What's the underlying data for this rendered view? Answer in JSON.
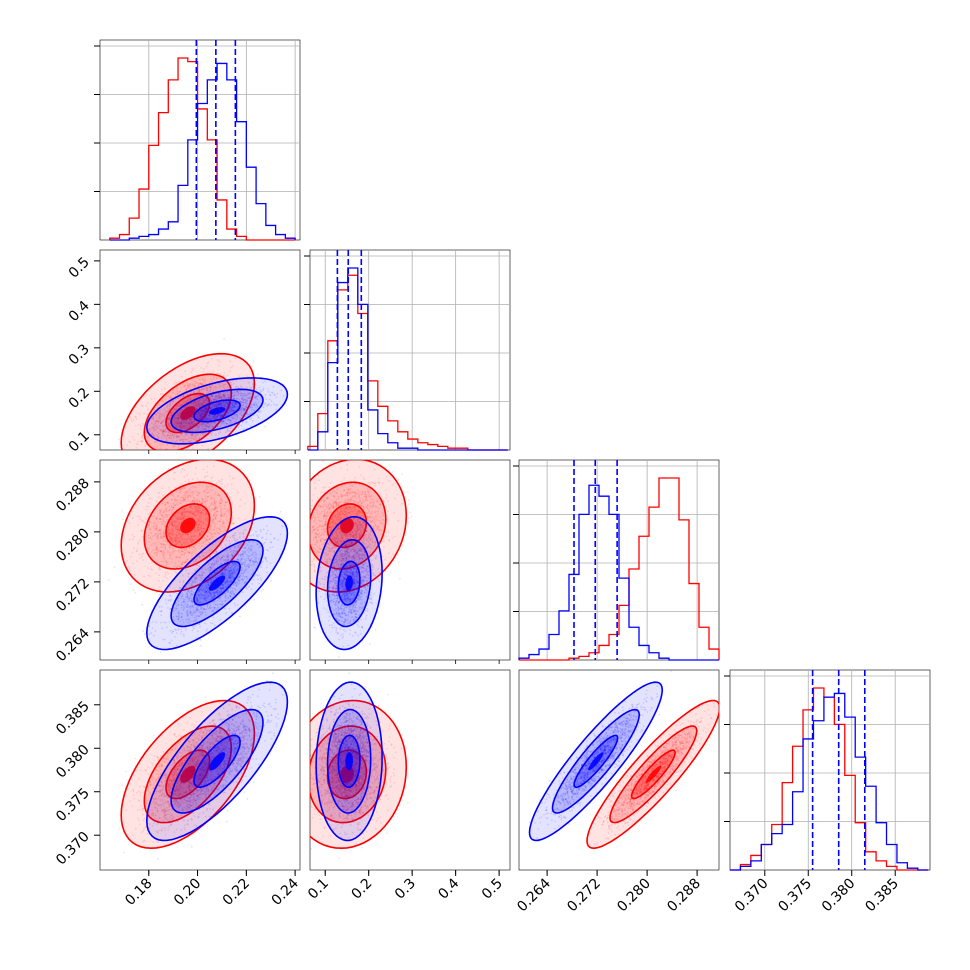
{
  "chart_data": {
    "type": "corner",
    "n_params": 4,
    "series": [
      {
        "color": "#0000ff"
      },
      {
        "color": "#ff0000"
      }
    ],
    "params": [
      {
        "range": [
          0.16,
          0.242
        ],
        "ticks": [
          0.18,
          0.2,
          0.22,
          0.24
        ],
        "tick_labels": [
          "0.18",
          "0.20",
          "0.22",
          "0.24"
        ]
      },
      {
        "range": [
          0.065,
          0.525
        ],
        "ticks": [
          0.1,
          0.2,
          0.3,
          0.4,
          0.5
        ],
        "tick_labels": [
          "0.1",
          "0.2",
          "0.3",
          "0.4",
          "0.5"
        ]
      },
      {
        "range": [
          0.2595,
          0.2915
        ],
        "ticks": [
          0.264,
          0.272,
          0.28,
          0.288
        ],
        "tick_labels": [
          "0.264",
          "0.272",
          "0.280",
          "0.288"
        ]
      },
      {
        "range": [
          0.366,
          0.389
        ],
        "ticks": [
          0.37,
          0.375,
          0.38,
          0.385
        ],
        "tick_labels": [
          "0.370",
          "0.375",
          "0.380",
          "0.385"
        ]
      }
    ],
    "quantile_lines": [
      [
        0.1995,
        0.2075,
        0.2155
      ],
      [
        0.128,
        0.153,
        0.183
      ],
      [
        0.2683,
        0.2717,
        0.2752
      ],
      [
        0.3755,
        0.3785,
        0.3815
      ]
    ],
    "histograms": [
      {
        "bins": [
          0.164,
          0.168,
          0.172,
          0.176,
          0.18,
          0.184,
          0.188,
          0.192,
          0.196,
          0.2,
          0.204,
          0.208,
          0.212,
          0.216,
          0.22,
          0.224,
          0.228,
          0.232,
          0.236,
          0.24
        ],
        "blue": [
          0,
          0,
          1,
          2,
          3,
          6,
          10,
          30,
          55,
          75,
          88,
          97,
          88,
          65,
          40,
          20,
          8,
          3,
          1
        ],
        "red": [
          1,
          3,
          12,
          28,
          52,
          70,
          88,
          100,
          98,
          72,
          55,
          22,
          6,
          2,
          0,
          0,
          0,
          0,
          0
        ]
      },
      {
        "bins": [
          0.06,
          0.083,
          0.106,
          0.129,
          0.152,
          0.175,
          0.198,
          0.221,
          0.244,
          0.267,
          0.29,
          0.313,
          0.336,
          0.359,
          0.382,
          0.405,
          0.428,
          0.451,
          0.474,
          0.497,
          0.52
        ],
        "blue": [
          0,
          10,
          48,
          92,
          100,
          80,
          22,
          9,
          4,
          1,
          1,
          0,
          0,
          0,
          0,
          0,
          0,
          0,
          0,
          0
        ],
        "red": [
          2,
          20,
          60,
          88,
          96,
          75,
          38,
          24,
          16,
          10,
          6,
          4,
          3,
          2,
          1,
          1,
          0,
          0,
          0,
          0
        ]
      },
      {
        "bins": [
          0.2595,
          0.2611,
          0.2627,
          0.2643,
          0.2659,
          0.2675,
          0.2691,
          0.2707,
          0.2723,
          0.2739,
          0.2755,
          0.2771,
          0.2787,
          0.2803,
          0.2819,
          0.2835,
          0.2851,
          0.2867,
          0.2883,
          0.2899,
          0.2915
        ],
        "blue": [
          1,
          3,
          6,
          14,
          27,
          47,
          80,
          96,
          90,
          80,
          45,
          18,
          8,
          4,
          1,
          0,
          0,
          0,
          0,
          0
        ],
        "red": [
          0,
          0,
          0,
          0,
          0,
          1,
          2,
          4,
          8,
          14,
          30,
          50,
          68,
          84,
          100,
          100,
          77,
          42,
          18,
          6
        ]
      },
      {
        "bins": [
          0.366,
          0.3672,
          0.3684,
          0.3696,
          0.3708,
          0.372,
          0.3732,
          0.3744,
          0.3756,
          0.3768,
          0.378,
          0.3792,
          0.3804,
          0.3816,
          0.3828,
          0.384,
          0.3852,
          0.3864,
          0.3876,
          0.3888
        ],
        "blue": [
          0,
          2,
          5,
          14,
          20,
          25,
          43,
          72,
          82,
          95,
          97,
          84,
          62,
          46,
          26,
          14,
          4,
          1,
          0
        ],
        "red": [
          0,
          3,
          8,
          14,
          25,
          48,
          68,
          88,
          100,
          95,
          80,
          52,
          26,
          10,
          5,
          2,
          0,
          0,
          0
        ]
      }
    ],
    "distributions": {
      "blue": {
        "mean": [
          0.208,
          0.155,
          0.2718,
          0.3785
        ],
        "sd": [
          0.0095,
          0.025,
          0.0035,
          0.003
        ],
        "corr": [
          [
            1.0,
            0.5,
            0.75,
            0.75
          ],
          [
            0.5,
            1.0,
            0.15,
            0.05
          ],
          [
            0.75,
            0.15,
            1.0,
            0.9
          ],
          [
            0.75,
            0.05,
            0.9,
            1.0
          ]
        ]
      },
      "red": {
        "mean": [
          0.196,
          0.15,
          0.281,
          0.377
        ],
        "sd": [
          0.009,
          0.045,
          0.0035,
          0.0028
        ],
        "corr": [
          [
            1.0,
            0.5,
            0.3,
            0.55
          ],
          [
            0.5,
            1.0,
            0.15,
            0.1
          ],
          [
            0.3,
            0.15,
            1.0,
            0.9
          ],
          [
            0.55,
            0.1,
            0.9,
            1.0
          ]
        ]
      }
    },
    "contour_levels": [
      0.39,
      0.86,
      0.99
    ],
    "grid": true
  }
}
